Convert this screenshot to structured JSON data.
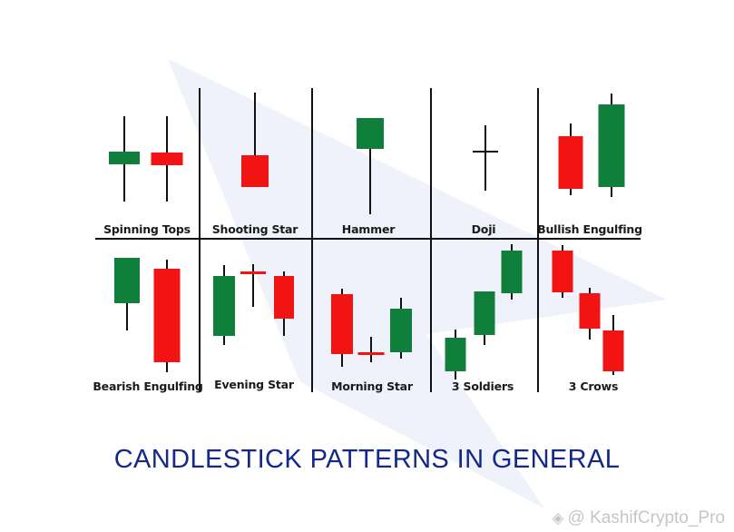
{
  "title": "CANDLESTICK PATTERNS IN GENERAL",
  "watermark": "@ KashifCrypto_Pro",
  "colors": {
    "bull": "#117f3c",
    "bear": "#f21313",
    "line": "#111111",
    "title": "#13288a",
    "bg_shape": "#e9eef8"
  },
  "patterns": [
    {
      "name": "Spinning Tops"
    },
    {
      "name": "Shooting Star"
    },
    {
      "name": "Hammer"
    },
    {
      "name": "Doji"
    },
    {
      "name": "Bullish Engulfing"
    },
    {
      "name": "Bearish Engulfing"
    },
    {
      "name": "Evening Star"
    },
    {
      "name": "Morning Star"
    },
    {
      "name": "3 Soldiers"
    },
    {
      "name": "3 Crows"
    }
  ]
}
